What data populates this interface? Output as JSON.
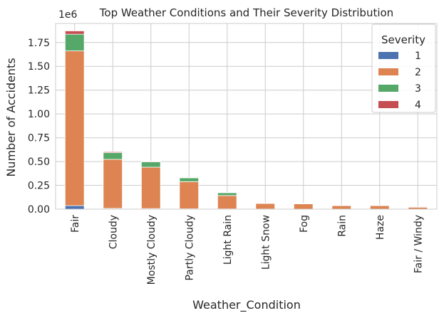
{
  "chart_data": {
    "type": "bar",
    "stacked": true,
    "title": "Top Weather Conditions and Their Severity Distribution",
    "xlabel": "Weather_Condition",
    "ylabel": "Number of Accidents",
    "offset_label": "1e6",
    "ylim": [
      0,
      1.95
    ],
    "yticks": [
      0.0,
      0.25,
      0.5,
      0.75,
      1.0,
      1.25,
      1.5,
      1.75
    ],
    "ytick_labels": [
      "0.00",
      "0.25",
      "0.50",
      "0.75",
      "1.00",
      "1.25",
      "1.50",
      "1.75"
    ],
    "grid": true,
    "legend_title": "Severity",
    "legend_position": "top-right",
    "categories": [
      "Fair",
      "Cloudy",
      "Mostly Cloudy",
      "Partly Cloudy",
      "Light Rain",
      "Light Snow",
      "Fog",
      "Rain",
      "Haze",
      "Fair / Windy"
    ],
    "series": [
      {
        "name": "1",
        "color": "#4c72b0",
        "values": [
          0.037,
          0.008,
          0.006,
          0.004,
          0.003,
          0.002,
          0.001,
          0.001,
          0.001,
          0.0005
        ]
      },
      {
        "name": "2",
        "color": "#dd8452",
        "values": [
          1.625,
          0.515,
          0.435,
          0.285,
          0.14,
          0.058,
          0.055,
          0.036,
          0.036,
          0.02
        ]
      },
      {
        "name": "3",
        "color": "#55a868",
        "values": [
          0.175,
          0.07,
          0.055,
          0.04,
          0.03,
          0.003,
          0.004,
          0.002,
          0.002,
          0.002
        ]
      },
      {
        "name": "4",
        "color": "#c44e52",
        "values": [
          0.035,
          0.01,
          0.007,
          0.004,
          0.002,
          0.001,
          0.001,
          0.0005,
          0.0005,
          0.0005
        ]
      }
    ]
  }
}
